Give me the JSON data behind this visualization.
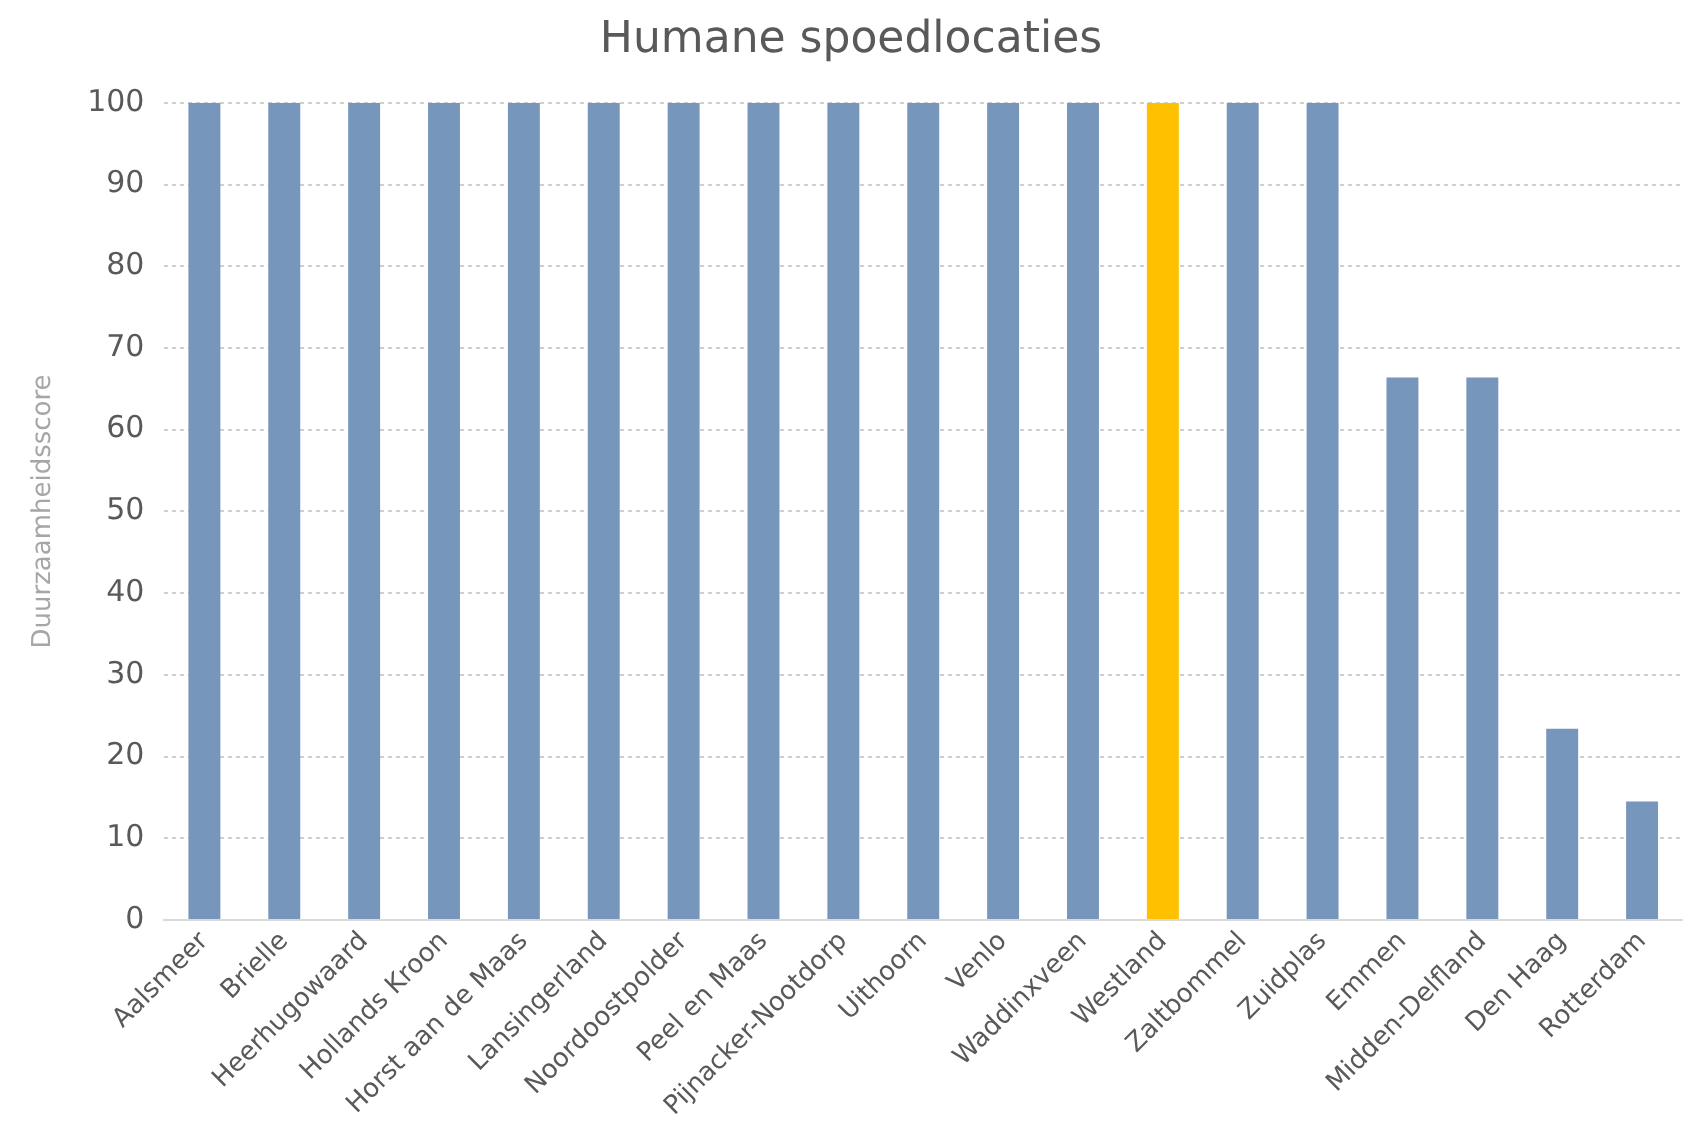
{
  "chart_data": {
    "type": "bar",
    "title": "Humane spoedlocaties",
    "ylabel": "Duurzaamheidsscore",
    "categories": [
      "Aalsmeer",
      "Brielle",
      "Heerhugowaard",
      "Hollands Kroon",
      "Horst aan de Maas",
      "Lansingerland",
      "Noordoostpolder",
      "Peel en Maas",
      "Pijnacker-Nootdorp",
      "Uithoorn",
      "Venlo",
      "Waddinxveen",
      "Westland",
      "Zaltbommel",
      "Zuidplas",
      "Emmen",
      "Midden-Delfland",
      "Den Haag",
      "Rotterdam"
    ],
    "values": [
      100,
      100,
      100,
      100,
      100,
      100,
      100,
      100,
      100,
      100,
      100,
      100,
      100,
      100,
      100,
      66.4,
      66.4,
      23.4,
      14.5
    ],
    "colors": [
      "#7796bb",
      "#7796bb",
      "#7796bb",
      "#7796bb",
      "#7796bb",
      "#7796bb",
      "#7796bb",
      "#7796bb",
      "#7796bb",
      "#7796bb",
      "#7796bb",
      "#7796bb",
      "#ffc000",
      "#7796bb",
      "#7796bb",
      "#7796bb",
      "#7796bb",
      "#7796bb",
      "#7796bb"
    ],
    "ylim": [
      0,
      100
    ],
    "yticks": [
      0,
      10,
      20,
      30,
      40,
      50,
      60,
      70,
      80,
      90,
      100
    ],
    "grid": "y",
    "legend": false
  }
}
